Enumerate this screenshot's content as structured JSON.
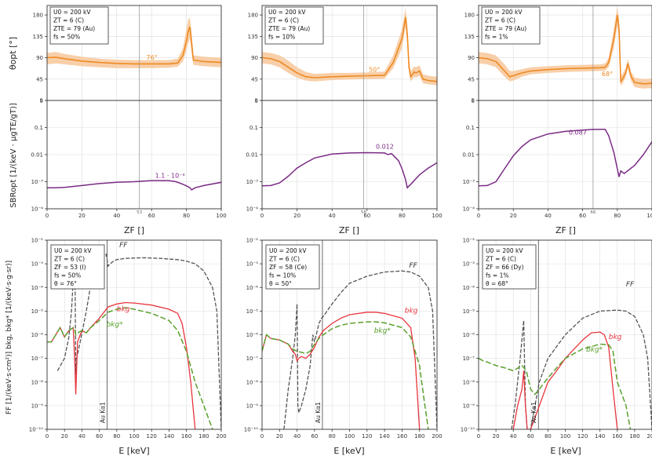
{
  "figure": {
    "top_ylabel": "θopt [°]",
    "mid_ylabel": "SBRopt [1/(keV · μgTE/gT)]",
    "bottom_ylabel": "FF [1/(keV·s·cm²)]   bkg, bkg* [1/(keV·s·g·sr)]",
    "zf_axis_label": "ZF []",
    "e_axis_label": "E [keV]",
    "ka_label": "Au Kα1",
    "series_labels": {
      "ff": "FF",
      "bkg": "bkg",
      "bkgstar": "bkg*"
    },
    "colors": {
      "theta": "#ee8a22",
      "theta_band": "#f7caa0",
      "sbr": "#7b2b86",
      "ff": "#555555",
      "bkg": "#e8353d",
      "bkgstar": "#5aa02c",
      "grid": "#dddddd",
      "marker": "#999999"
    }
  },
  "chart_data": [
    {
      "type": "line",
      "panel": "theta-50",
      "col": 0,
      "xlim": [
        0,
        100
      ],
      "ylim": [
        0,
        200
      ],
      "yticks": [
        0,
        45,
        90,
        135,
        180
      ],
      "xticks": [],
      "info": [
        "U0 = 200 kV",
        "ZT = 6 (C)",
        "ZTE = 79 (Au)",
        "fs = 50%"
      ],
      "x": [
        0,
        5,
        10,
        20,
        30,
        40,
        50,
        60,
        70,
        75,
        78,
        80,
        81,
        82,
        83,
        84,
        90,
        100
      ],
      "y": [
        90,
        91,
        88,
        83,
        80,
        78,
        77,
        77,
        77,
        79,
        95,
        125,
        145,
        155,
        120,
        85,
        82,
        80
      ],
      "upper": [
        100,
        102,
        98,
        92,
        88,
        86,
        85,
        85,
        85,
        88,
        110,
        150,
        170,
        175,
        140,
        95,
        92,
        90
      ],
      "lower": [
        76,
        78,
        76,
        72,
        70,
        68,
        68,
        68,
        69,
        71,
        82,
        105,
        120,
        130,
        100,
        75,
        72,
        70
      ],
      "marker": 53,
      "annotation": "76°",
      "annotation_x": 57,
      "annotation_y": 86
    },
    {
      "type": "line",
      "panel": "theta-10",
      "col": 1,
      "xlim": [
        0,
        100
      ],
      "ylim": [
        0,
        200
      ],
      "yticks": [
        0,
        45,
        90,
        135,
        180
      ],
      "xticks": [],
      "info": [
        "U0 = 200 kV",
        "ZT = 6 (C)",
        "ZTE = 79 (Au)",
        "fs = 10%"
      ],
      "x": [
        0,
        5,
        10,
        15,
        20,
        25,
        30,
        40,
        50,
        60,
        70,
        75,
        80,
        82,
        83,
        84,
        85,
        87,
        88,
        90,
        92,
        95,
        100
      ],
      "y": [
        90,
        88,
        82,
        70,
        58,
        50,
        48,
        50,
        51,
        52,
        53,
        80,
        130,
        175,
        140,
        70,
        50,
        60,
        58,
        62,
        45,
        42,
        40
      ],
      "upper": [
        102,
        100,
        95,
        84,
        70,
        60,
        56,
        58,
        58,
        59,
        61,
        95,
        150,
        195,
        160,
        85,
        62,
        72,
        70,
        74,
        55,
        52,
        50
      ],
      "lower": [
        78,
        76,
        70,
        58,
        48,
        42,
        40,
        43,
        44,
        45,
        46,
        68,
        110,
        155,
        120,
        58,
        40,
        50,
        48,
        52,
        36,
        34,
        32
      ],
      "marker": 58,
      "annotation": "50°",
      "annotation_x": 61,
      "annotation_y": 60
    },
    {
      "type": "line",
      "panel": "theta-1",
      "col": 2,
      "xlim": [
        0,
        100
      ],
      "ylim": [
        0,
        200
      ],
      "yticks": [
        0,
        45,
        90,
        135,
        180
      ],
      "xticks": [],
      "info": [
        "U0 = 200 kV",
        "ZT = 6 (C)",
        "ZTE = 79 (Au)",
        "fs = 1%"
      ],
      "x": [
        0,
        5,
        10,
        15,
        18,
        20,
        25,
        30,
        40,
        50,
        60,
        70,
        73,
        75,
        78,
        80,
        81,
        82,
        83,
        85,
        86,
        88,
        90,
        95,
        100
      ],
      "y": [
        90,
        88,
        82,
        62,
        50,
        52,
        58,
        62,
        65,
        67,
        68,
        69,
        70,
        80,
        130,
        180,
        150,
        40,
        45,
        60,
        78,
        50,
        38,
        35,
        36
      ],
      "upper": [
        102,
        100,
        95,
        76,
        62,
        62,
        66,
        70,
        72,
        74,
        75,
        76,
        78,
        90,
        150,
        198,
        170,
        52,
        56,
        70,
        88,
        60,
        48,
        45,
        46
      ],
      "lower": [
        78,
        76,
        70,
        50,
        40,
        42,
        50,
        55,
        58,
        60,
        61,
        62,
        63,
        70,
        110,
        160,
        130,
        30,
        35,
        50,
        68,
        40,
        28,
        25,
        26
      ],
      "marker": 66,
      "annotation": "68°",
      "annotation_x": 71,
      "annotation_y": 51
    },
    {
      "type": "line",
      "panel": "sbr-50",
      "col": 0,
      "xlim": [
        0,
        100
      ],
      "ylog": [
        -4,
        0
      ],
      "yticklabels": [
        "10⁻⁴",
        "10⁻³",
        "0.01",
        "0.1",
        "1"
      ],
      "xticks": [
        0,
        20,
        40,
        60,
        80,
        100
      ],
      "x": [
        0,
        5,
        10,
        20,
        30,
        40,
        50,
        60,
        70,
        74,
        78,
        80,
        82,
        83,
        85,
        90,
        100
      ],
      "y": [
        0.0006,
        0.0006,
        0.00062,
        0.00072,
        0.00085,
        0.00095,
        0.001,
        0.0011,
        0.0011,
        0.001,
        0.0008,
        0.0007,
        0.0006,
        0.0005,
        0.0006,
        0.00072,
        0.00095
      ],
      "marker": 53,
      "marker_label": "53",
      "annotation": "1.1 · 10⁻³",
      "annotation_x": 62,
      "annotation_y": 0.0014
    },
    {
      "type": "line",
      "panel": "sbr-10",
      "col": 1,
      "xlim": [
        0,
        100
      ],
      "ylog": [
        -4,
        0
      ],
      "yticklabels": [
        "10⁻⁴",
        "10⁻³",
        "0.01",
        "0.1",
        "1"
      ],
      "xticks": [
        0,
        20,
        40,
        60,
        80,
        100
      ],
      "x": [
        0,
        5,
        10,
        15,
        20,
        25,
        30,
        40,
        50,
        60,
        70,
        72,
        74,
        76,
        78,
        80,
        82,
        83,
        85,
        90,
        95,
        100
      ],
      "y": [
        0.0007,
        0.00072,
        0.0009,
        0.0016,
        0.0032,
        0.005,
        0.0075,
        0.0105,
        0.0115,
        0.0118,
        0.0115,
        0.01,
        0.011,
        0.008,
        0.006,
        0.003,
        0.0012,
        0.0006,
        0.0008,
        0.0018,
        0.0032,
        0.005
      ],
      "marker": 58,
      "marker_label": "58",
      "annotation": "0.012",
      "annotation_x": 65,
      "annotation_y": 0.0165
    },
    {
      "type": "line",
      "panel": "sbr-1",
      "col": 2,
      "xlim": [
        0,
        100
      ],
      "ylog": [
        -4,
        0
      ],
      "yticklabels": [
        "10⁻⁴",
        "10⁻³",
        "0.01",
        "0.1",
        "1"
      ],
      "xticks": [
        0,
        20,
        40,
        60,
        80,
        100
      ],
      "x": [
        0,
        5,
        10,
        15,
        20,
        25,
        30,
        40,
        50,
        60,
        66,
        70,
        73,
        75,
        78,
        80,
        81,
        82,
        84,
        90,
        95,
        100
      ],
      "y": [
        0.0007,
        0.00072,
        0.001,
        0.003,
        0.009,
        0.02,
        0.035,
        0.058,
        0.072,
        0.08,
        0.085,
        0.086,
        0.086,
        0.05,
        0.012,
        0.003,
        0.0015,
        0.0025,
        0.002,
        0.004,
        0.01,
        0.03
      ],
      "marker": 66,
      "marker_label": "66",
      "annotation": "0.087",
      "annotation_x": 52,
      "annotation_y": 0.055
    },
    {
      "type": "line",
      "panel": "spec-50",
      "col": 0,
      "xlim": [
        0,
        200
      ],
      "ylog": [
        -10,
        -2
      ],
      "yticklabels": [
        "10⁻¹⁰",
        "10⁻⁹",
        "10⁻⁸",
        "10⁻⁷",
        "10⁻⁶",
        "10⁻⁵",
        "10⁻⁴",
        "10⁻³",
        "10⁻²"
      ],
      "xticks": [
        0,
        20,
        40,
        60,
        80,
        100,
        120,
        140,
        160,
        180,
        200
      ],
      "info": [
        "U0 = 200 kV",
        "ZT = 6 (C)",
        "ZF = 53 (I)",
        "fs = 50%",
        "θ = 76°"
      ],
      "ka_x": 69,
      "ff": {
        "x": [
          12,
          20,
          25,
          28,
          30,
          32,
          33,
          34,
          38,
          45,
          50,
          55,
          58,
          60,
          62,
          65,
          68,
          70,
          75,
          80,
          90,
          110,
          130,
          150,
          160,
          170,
          180,
          190,
          195,
          200
        ],
        "y": [
          3e-08,
          1e-07,
          8e-07,
          1e-05,
          0.0002,
          0.001,
          2e-08,
          1e-07,
          5e-07,
          1e-05,
          0.00012,
          0.0004,
          0.0005,
          0.001,
          0.0015,
          0.002,
          0.0025,
          0.0008,
          0.0012,
          0.0015,
          0.0017,
          0.0018,
          0.0017,
          0.0015,
          0.0013,
          0.001,
          0.0005,
          0.0001,
          1e-05,
          1e-10
        ]
      },
      "bkg": {
        "x": [
          0,
          5,
          10,
          15,
          20,
          25,
          30,
          32,
          33,
          35,
          40,
          45,
          50,
          60,
          70,
          80,
          90,
          100,
          120,
          140,
          150,
          155,
          160,
          165,
          170
        ],
        "y": [
          5e-07,
          5e-07,
          1e-06,
          2e-06,
          8e-07,
          1.5e-06,
          2e-06,
          5e-08,
          3e-09,
          5e-07,
          1.5e-06,
          1.2e-06,
          2e-06,
          5e-06,
          1.5e-05,
          2e-05,
          2.3e-05,
          2.2e-05,
          1.8e-05,
          1.2e-05,
          8e-06,
          3e-06,
          3e-07,
          1e-08,
          1e-10
        ]
      },
      "bkgstar": {
        "x": [
          0,
          5,
          10,
          15,
          20,
          25,
          30,
          32,
          33,
          35,
          40,
          45,
          50,
          60,
          70,
          80,
          90,
          100,
          120,
          140,
          150,
          160,
          170,
          180,
          190
        ],
        "y": [
          5e-07,
          5e-07,
          1e-06,
          2e-06,
          8e-07,
          1.5e-06,
          2e-06,
          1.5e-06,
          1e-06,
          1.2e-06,
          1.5e-06,
          1.2e-06,
          2e-06,
          4e-06,
          9e-06,
          1.2e-05,
          1.4e-05,
          1.2e-05,
          8e-06,
          4e-06,
          1.5e-06,
          2e-07,
          1e-08,
          1e-09,
          1e-10
        ]
      },
      "ff_label_xy": [
        83,
        0.005
      ],
      "bkg_label_xy": [
        80,
        1e-05
      ],
      "bkgstar_label_xy": [
        68,
        2.2e-06
      ]
    },
    {
      "type": "line",
      "panel": "spec-10",
      "col": 1,
      "xlim": [
        0,
        200
      ],
      "ylog": [
        -10,
        -2
      ],
      "yticklabels": [
        "10⁻¹⁰",
        "10⁻⁹",
        "10⁻⁸",
        "10⁻⁷",
        "10⁻⁶",
        "10⁻⁵",
        "10⁻⁴",
        "10⁻³",
        "10⁻²"
      ],
      "xticks": [
        0,
        20,
        40,
        60,
        80,
        100,
        120,
        140,
        160,
        180,
        200
      ],
      "info": [
        "U0 = 200 kV",
        "ZT = 6 (C)",
        "ZF = 58 (Ce)",
        "fs = 10%",
        "θ = 50°"
      ],
      "ka_x": 69,
      "ff": {
        "x": [
          25,
          30,
          35,
          38,
          40,
          41,
          42,
          45,
          50,
          55,
          58,
          60,
          62,
          65,
          68,
          70,
          80,
          90,
          100,
          120,
          140,
          160,
          170,
          180,
          190,
          195,
          200
        ],
        "y": [
          1e-10,
          5e-09,
          1e-07,
          1e-06,
          2e-05,
          1e-09,
          5e-10,
          1e-09,
          5e-09,
          5e-08,
          1e-06,
          5e-07,
          1e-06,
          3e-06,
          5e-06,
          6e-06,
          2e-05,
          6e-05,
          0.00015,
          0.0003,
          0.00045,
          0.0005,
          0.00045,
          0.0003,
          0.0001,
          1e-05,
          1e-10
        ]
      },
      "bkg": {
        "x": [
          0,
          5,
          10,
          20,
          30,
          35,
          38,
          40,
          42,
          45,
          50,
          55,
          60,
          65,
          70,
          80,
          90,
          100,
          120,
          130,
          140,
          160,
          170,
          175,
          180
        ],
        "y": [
          2e-07,
          1e-06,
          7e-07,
          6e-07,
          4e-07,
          2e-07,
          1.5e-07,
          8e-08,
          1e-07,
          1.2e-07,
          1e-07,
          1.5e-07,
          3e-07,
          8e-07,
          1.5e-06,
          3e-06,
          5e-06,
          7e-06,
          9e-06,
          9e-06,
          8e-06,
          5e-06,
          2e-06,
          1e-07,
          1e-10
        ]
      },
      "bkgstar": {
        "x": [
          0,
          5,
          10,
          20,
          30,
          35,
          40,
          45,
          50,
          55,
          60,
          65,
          70,
          80,
          90,
          100,
          120,
          130,
          140,
          160,
          170,
          180,
          185,
          190
        ],
        "y": [
          2e-07,
          1e-06,
          7e-07,
          6e-07,
          4e-07,
          2.5e-07,
          2e-07,
          1.8e-07,
          1.6e-07,
          2e-07,
          4e-07,
          7e-07,
          1e-06,
          1.8e-06,
          2.5e-06,
          3e-06,
          3.5e-06,
          3.5e-06,
          3.2e-06,
          2e-06,
          8e-07,
          5e-08,
          2e-09,
          1e-10
        ]
      },
      "ff_label_xy": [
        168,
        0.0007
      ],
      "bkg_label_xy": [
        163,
        8.5e-06
      ],
      "bkgstar_label_xy": [
        128,
        1.2e-06
      ]
    },
    {
      "type": "line",
      "panel": "spec-1",
      "col": 2,
      "xlim": [
        0,
        200
      ],
      "ylog": [
        -10,
        -2
      ],
      "yticklabels": [
        "10⁻¹⁰",
        "10⁻⁹",
        "10⁻⁸",
        "10⁻⁷",
        "10⁻⁶",
        "10⁻⁵",
        "10⁻⁴",
        "10⁻³",
        "10⁻²"
      ],
      "xticks": [
        0,
        20,
        40,
        60,
        80,
        100,
        120,
        140,
        160,
        180,
        200
      ],
      "info": [
        "U0 = 200 kV",
        "ZT = 6 (C)",
        "ZF = 66 (Dy)",
        "fs = 1%",
        "θ = 68°"
      ],
      "ka_x": 69,
      "ff": {
        "x": [
          38,
          42,
          45,
          48,
          52,
          54,
          56,
          60,
          65,
          70,
          80,
          100,
          120,
          140,
          160,
          170,
          180,
          190,
          195,
          200
        ],
        "y": [
          1e-10,
          1e-09,
          1e-08,
          1e-07,
          4e-06,
          1e-09,
          1e-10,
          1e-10,
          1e-09,
          1e-08,
          1e-07,
          1e-06,
          5e-06,
          1e-05,
          1.1e-05,
          1e-05,
          6e-06,
          1e-06,
          1e-07,
          1e-10
        ]
      },
      "bkg": {
        "x": [
          40,
          45,
          50,
          52,
          54,
          56,
          60,
          70,
          80,
          90,
          100,
          120,
          130,
          140,
          145,
          150,
          155,
          160
        ],
        "y": [
          1e-10,
          1e-09,
          5e-09,
          3e-08,
          1e-09,
          1e-10,
          1e-10,
          1e-09,
          1e-08,
          3e-08,
          1e-07,
          6e-07,
          1.2e-06,
          1.3e-06,
          1e-06,
          3e-07,
          5e-09,
          1e-10
        ]
      },
      "bkgstar": {
        "x": [
          0,
          5,
          10,
          20,
          30,
          40,
          50,
          55,
          60,
          65,
          70,
          80,
          90,
          100,
          120,
          140,
          150,
          155,
          160,
          170,
          175
        ],
        "y": [
          1e-07,
          8e-08,
          7e-08,
          5e-08,
          4e-08,
          3e-08,
          5e-08,
          3e-08,
          5e-09,
          3e-09,
          5e-09,
          1.5e-08,
          4e-08,
          1e-07,
          2.5e-07,
          4e-07,
          3.8e-07,
          2e-07,
          1e-08,
          1e-09,
          1e-10
        ]
      },
      "ff_label_xy": [
        170,
        0.00011
      ],
      "bkg_label_xy": [
        150,
        6.5e-07
      ],
      "bkgstar_label_xy": [
        124,
        1.9e-07
      ]
    }
  ]
}
